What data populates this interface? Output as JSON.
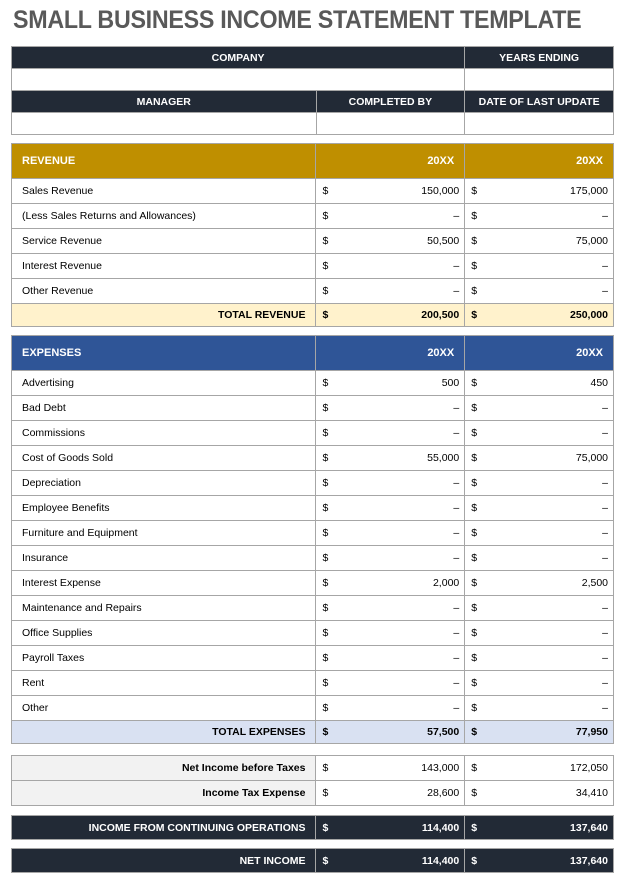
{
  "title": "SMALL BUSINESS INCOME STATEMENT TEMPLATE",
  "info": {
    "company": "COMPANY",
    "years_ending": "YEARS ENDING",
    "manager": "MANAGER",
    "completed_by": "COMPLETED BY",
    "date_of_last_update": "DATE OF LAST UPDATE"
  },
  "colors": {
    "dark": "#222a36",
    "revenue": "#bf8f00",
    "revenue_total": "#fff2cc",
    "expenses": "#2f5597",
    "expenses_total": "#d9e1f2"
  },
  "revenue": {
    "label": "REVENUE",
    "year1": "20XX",
    "year2": "20XX",
    "rows": [
      {
        "label": "Sales Revenue",
        "cur1": "$",
        "v1": "150,000",
        "cur2": "$",
        "v2": "175,000"
      },
      {
        "label": "(Less Sales Returns and Allowances)",
        "cur1": "$",
        "v1": "–",
        "cur2": "$",
        "v2": "–"
      },
      {
        "label": "Service Revenue",
        "cur1": "$",
        "v1": "50,500",
        "cur2": "$",
        "v2": "75,000"
      },
      {
        "label": "Interest Revenue",
        "cur1": "$",
        "v1": "–",
        "cur2": "$",
        "v2": "–"
      },
      {
        "label": "Other Revenue",
        "cur1": "$",
        "v1": "–",
        "cur2": "$",
        "v2": "–"
      }
    ],
    "total": {
      "label": "TOTAL REVENUE",
      "cur1": "$",
      "v1": "200,500",
      "cur2": "$",
      "v2": "250,000"
    }
  },
  "expenses": {
    "label": "EXPENSES",
    "year1": "20XX",
    "year2": "20XX",
    "rows": [
      {
        "label": "Advertising",
        "cur1": "$",
        "v1": "500",
        "cur2": "$",
        "v2": "450"
      },
      {
        "label": "Bad Debt",
        "cur1": "$",
        "v1": "–",
        "cur2": "$",
        "v2": "–"
      },
      {
        "label": "Commissions",
        "cur1": "$",
        "v1": "–",
        "cur2": "$",
        "v2": "–"
      },
      {
        "label": "Cost of Goods Sold",
        "cur1": "$",
        "v1": "55,000",
        "cur2": "$",
        "v2": "75,000"
      },
      {
        "label": "Depreciation",
        "cur1": "$",
        "v1": "–",
        "cur2": "$",
        "v2": "–"
      },
      {
        "label": "Employee Benefits",
        "cur1": "$",
        "v1": "–",
        "cur2": "$",
        "v2": "–"
      },
      {
        "label": "Furniture and Equipment",
        "cur1": "$",
        "v1": "–",
        "cur2": "$",
        "v2": "–"
      },
      {
        "label": "Insurance",
        "cur1": "$",
        "v1": "–",
        "cur2": "$",
        "v2": "–"
      },
      {
        "label": "Interest Expense",
        "cur1": "$",
        "v1": "2,000",
        "cur2": "$",
        "v2": "2,500"
      },
      {
        "label": "Maintenance and Repairs",
        "cur1": "$",
        "v1": "–",
        "cur2": "$",
        "v2": "–"
      },
      {
        "label": "Office Supplies",
        "cur1": "$",
        "v1": "–",
        "cur2": "$",
        "v2": "–"
      },
      {
        "label": "Payroll Taxes",
        "cur1": "$",
        "v1": "–",
        "cur2": "$",
        "v2": "–"
      },
      {
        "label": "Rent",
        "cur1": "$",
        "v1": "–",
        "cur2": "$",
        "v2": "–"
      },
      {
        "label": "Other",
        "cur1": "$",
        "v1": "–",
        "cur2": "$",
        "v2": "–"
      }
    ],
    "total": {
      "label": "TOTAL EXPENSES",
      "cur1": "$",
      "v1": "57,500",
      "cur2": "$",
      "v2": "77,950"
    }
  },
  "summary": [
    {
      "label": "Net Income before Taxes",
      "cur1": "$",
      "v1": "143,000",
      "cur2": "$",
      "v2": "172,050"
    },
    {
      "label": "Income Tax Expense",
      "cur1": "$",
      "v1": "28,600",
      "cur2": "$",
      "v2": "34,410"
    }
  ],
  "continuing_operations": {
    "label": "INCOME FROM CONTINUING OPERATIONS",
    "cur1": "$",
    "v1": "114,400",
    "cur2": "$",
    "v2": "137,640"
  },
  "net_income": {
    "label": "NET INCOME",
    "cur1": "$",
    "v1": "114,400",
    "cur2": "$",
    "v2": "137,640"
  }
}
